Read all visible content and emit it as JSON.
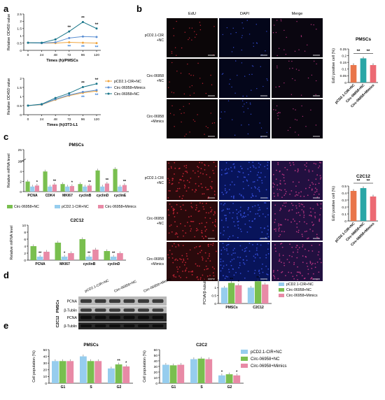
{
  "panel_labels": [
    "a",
    "b",
    "c",
    "d",
    "e"
  ],
  "colors": {
    "cir_nc": "#f0a640",
    "c06958_nc": "#79bf4f",
    "mimics": "#e88aa6",
    "cir_nc_blue": "#96cdee",
    "cck_c06958": "#19768a",
    "cck_mimics": "#5b8fd3",
    "edu_cir": "#e9754a",
    "edu_c06958": "#2aa6a6",
    "edu_mimics": "#ec6a73",
    "sig_star": "#1a1a1a",
    "sig_blue": "#2f79d4"
  },
  "legend_a": [
    "pCD2.1-CIR+NC",
    "Circ-06958+Mimics",
    "Circ-06958+NC"
  ],
  "legend_main": [
    "pCD2.1-CIR+NC",
    "Circ-06958+NC",
    "Circ-06958+Mimics"
  ],
  "legend_c": [
    "Circ-06958+NC",
    "pCD2.1-CIR+NC",
    "Circ-06958+Mimics"
  ],
  "panel_b": {
    "col_titles": [
      "EdU",
      "DAPI",
      "Merge"
    ],
    "row_labels_pmscs": [
      [
        "pCD2.1-CIR",
        "+NC"
      ],
      [
        "Circ-06958",
        "+NC"
      ],
      [
        "Circ-06958",
        "+Mimics"
      ]
    ],
    "row_labels_c2c12": [
      [
        "pCD2.1-CIR",
        "+NC"
      ],
      [
        "Circ-06958",
        "+NC"
      ],
      [
        "Circ-06958",
        "+Mimics"
      ]
    ],
    "bar_categories": [
      "pCD2.1-CIR+NC",
      "Circ-06958+NC",
      "Circ-06958+Mimics"
    ],
    "bar_ylabel": "EdU positive cell (%)"
  },
  "panel_c": {
    "ylabel": "Relative mRNA level"
  },
  "panel_d": {
    "lane_labels": [
      "pCD2.1-CIR+NC",
      "Circ-06958+NC",
      "Circ-06958+Mimics"
    ],
    "bands": [
      "PCNA",
      "β-Tublin",
      "PCNA",
      "β-Tublin"
    ],
    "groups": [
      "PMSCs",
      "C2C12"
    ],
    "bar_ylabel": "PCNA/β-tubulin"
  },
  "panel_e": {
    "ylabel": "Cell population (%)"
  },
  "chart_data": [
    {
      "type": "line",
      "title": "",
      "xlabel": "Times (h)/PMSCs",
      "ylabel": "Relative OD450 value",
      "x": [
        0,
        24,
        48,
        72,
        96,
        120
      ],
      "ylim": [
        0,
        2.5
      ],
      "yticks": [
        0,
        0.5,
        1.0,
        1.5,
        2.0,
        2.5
      ],
      "series": [
        {
          "name": "pCD2.1-CIR+NC",
          "values": [
            0.52,
            0.5,
            0.5,
            0.55,
            0.52,
            0.5
          ]
        },
        {
          "name": "Circ-06958+Mimics",
          "values": [
            0.52,
            0.5,
            0.55,
            0.85,
            0.95,
            0.92
          ]
        },
        {
          "name": "Circ-06958+NC",
          "values": [
            0.52,
            0.52,
            0.75,
            1.3,
            1.95,
            1.5
          ]
        }
      ],
      "annotations": [
        {
          "x": 72,
          "text": "**"
        },
        {
          "x": 96,
          "text": "**"
        },
        {
          "x": 120,
          "text": "**"
        },
        {
          "x": 72,
          "text": "**",
          "color": "blue"
        },
        {
          "x": 96,
          "text": "**",
          "color": "blue"
        },
        {
          "x": 120,
          "text": "**",
          "color": "blue"
        }
      ]
    },
    {
      "type": "line",
      "title": "",
      "xlabel": "Times (h)/3T3-L1",
      "ylabel": "Relative OD450 value",
      "x": [
        0,
        24,
        48,
        72,
        96,
        120
      ],
      "ylim": [
        0,
        2.0
      ],
      "yticks": [
        0,
        0.5,
        1.0,
        1.5,
        2.0
      ],
      "series": [
        {
          "name": "pCD2.1-CIR+NC",
          "values": [
            0.5,
            0.55,
            0.82,
            1.05,
            1.2,
            1.3
          ]
        },
        {
          "name": "Circ-06958+Mimics",
          "values": [
            0.5,
            0.56,
            0.85,
            1.08,
            1.25,
            1.35
          ]
        },
        {
          "name": "Circ-06958+NC",
          "values": [
            0.5,
            0.58,
            0.92,
            1.18,
            1.52,
            1.7
          ]
        }
      ],
      "annotations": [
        {
          "x": 96,
          "text": "**"
        },
        {
          "x": 120,
          "text": "**"
        },
        {
          "x": 96,
          "text": "**",
          "color": "blue"
        },
        {
          "x": 120,
          "text": "**",
          "color": "blue"
        }
      ]
    },
    {
      "type": "bar",
      "title": "PMSCs",
      "xlabel": "",
      "ylabel": "EdU positive cell (%)",
      "categories": [
        "pCD2.1-CIR+NC",
        "Circ-06958+NC",
        "Circ-06958+Mimics"
      ],
      "values": [
        0.13,
        0.18,
        0.13
      ],
      "ylim": [
        0,
        0.25
      ],
      "yticks": [
        0.0,
        0.05,
        0.1,
        0.15,
        0.2,
        0.25
      ],
      "annotations": [
        "**",
        "**"
      ]
    },
    {
      "type": "bar",
      "title": "C2C12",
      "xlabel": "",
      "ylabel": "EdU positive cell (%)",
      "categories": [
        "pCD2.1-CIR+NC",
        "Circ-06958+NC",
        "Circ-06958+Mimics"
      ],
      "values": [
        0.43,
        0.47,
        0.35
      ],
      "ylim": [
        0,
        0.5
      ],
      "yticks": [
        0.0,
        0.1,
        0.2,
        0.3,
        0.4,
        0.5
      ],
      "annotations": [
        "**",
        "**"
      ]
    },
    {
      "type": "bar",
      "title": "PMSCs",
      "xlabel": "",
      "ylabel": "Relative mRNA level",
      "categories": [
        "PCNA",
        "CDK4",
        "MKI67",
        "cyclinB",
        "cyclinD",
        "cyclinE"
      ],
      "series": [
        {
          "name": "Circ-06958+NC",
          "values": [
            2.0,
            4.0,
            1.5,
            1.5,
            4.2,
            4.5
          ]
        },
        {
          "name": "pCD2.1-CIR+NC",
          "values": [
            1.0,
            1.0,
            1.0,
            1.0,
            1.0,
            1.0
          ]
        },
        {
          "name": "Circ-06958+Mimics",
          "values": [
            1.2,
            1.4,
            1.1,
            1.2,
            1.6,
            1.3
          ]
        }
      ],
      "ylim": [
        0,
        25
      ],
      "yticks": [
        0,
        2,
        4,
        6,
        20,
        25
      ],
      "annotations": [
        "*",
        "**",
        "*",
        "**",
        "**",
        "**"
      ]
    },
    {
      "type": "bar",
      "title": "C2C12",
      "xlabel": "",
      "ylabel": "Relative mRNA level",
      "categories": [
        "PCNA",
        "MKI67",
        "cyclinB",
        "cyclinD"
      ],
      "series": [
        {
          "name": "Circ-06958+NC",
          "values": [
            4.0,
            5.0,
            6.0,
            2.6
          ]
        },
        {
          "name": "pCD2.1-CIR+NC",
          "values": [
            1.0,
            1.0,
            1.0,
            1.0
          ]
        },
        {
          "name": "Circ-06958+Mimics",
          "values": [
            2.4,
            2.0,
            3.0,
            2.0
          ]
        }
      ],
      "ylim": [
        0,
        10
      ],
      "yticks": [
        0,
        2,
        4,
        6,
        8,
        10
      ],
      "annotations": [
        "**",
        "*",
        "**",
        "**"
      ]
    },
    {
      "type": "bar",
      "title": "",
      "xlabel": "",
      "ylabel": "PCNA/β-tubulin",
      "categories": [
        "PMSCs",
        "C2C12"
      ],
      "series": [
        {
          "name": "pCD2.1-CIR+NC",
          "values": [
            1.0,
            1.0
          ]
        },
        {
          "name": "Circ-06958+NC",
          "values": [
            1.3,
            1.4
          ]
        },
        {
          "name": "Circ-06958+Mimics",
          "values": [
            1.15,
            1.2
          ]
        }
      ],
      "ylim": [
        0,
        1.5
      ],
      "yticks": [
        0.0,
        0.5,
        1.0,
        1.5
      ],
      "annotations": [
        "**",
        "*",
        "**",
        "*"
      ]
    },
    {
      "type": "bar",
      "title": "PMSCs",
      "xlabel": "",
      "ylabel": "Cell population (%)",
      "categories": [
        "G1",
        "S",
        "G2"
      ],
      "series": [
        {
          "name": "pCD2.1-CIR+NC",
          "values": [
            33,
            40,
            22
          ]
        },
        {
          "name": "Circ-06958+NC",
          "values": [
            33,
            33,
            28
          ]
        },
        {
          "name": "Circ-06958+Mimics",
          "values": [
            33,
            33,
            25
          ]
        }
      ],
      "ylim": [
        0,
        50
      ],
      "yticks": [
        0,
        10,
        20,
        30,
        40,
        50
      ],
      "annotations": [
        "**",
        "*"
      ]
    },
    {
      "type": "bar",
      "title": "C2C2",
      "xlabel": "",
      "ylabel": "Cell population (%)",
      "categories": [
        "G1",
        "S",
        "G2"
      ],
      "series": [
        {
          "name": "pCD2.1-CIR+NC",
          "values": [
            33,
            43,
            14
          ]
        },
        {
          "name": "Circ-06958+NC",
          "values": [
            32,
            44,
            16
          ]
        },
        {
          "name": "Circ-06958+Mimics",
          "values": [
            33,
            43,
            14
          ]
        }
      ],
      "ylim": [
        0,
        60
      ],
      "yticks": [
        0,
        10,
        20,
        30,
        40,
        50,
        60
      ],
      "annotations": [
        "*",
        "*"
      ]
    }
  ]
}
